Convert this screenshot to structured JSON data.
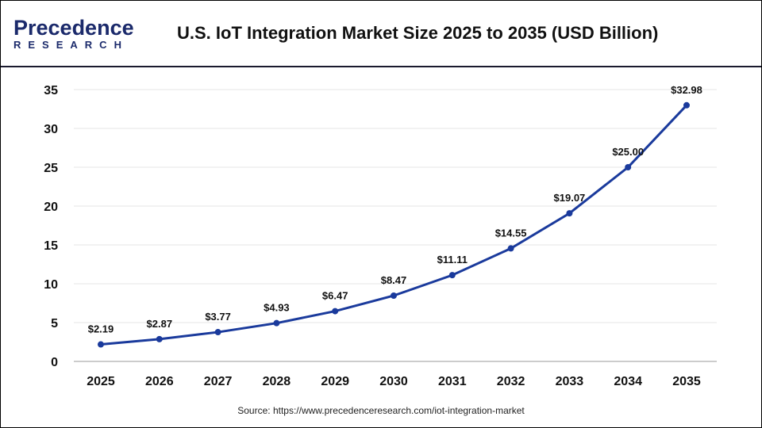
{
  "header": {
    "logo_line1": "Precedence",
    "logo_line2": "RESEARCH",
    "title": "U.S. IoT Integration Market Size 2025 to 2035 (USD Billion)"
  },
  "source": "Source: https://www.precedenceresearch.com/iot-integration-market",
  "chart_data": {
    "type": "line",
    "title": "U.S. IoT Integration Market Size 2025 to 2035 (USD Billion)",
    "categories": [
      "2025",
      "2026",
      "2027",
      "2028",
      "2029",
      "2030",
      "2031",
      "2032",
      "2033",
      "2034",
      "2035"
    ],
    "series": [
      {
        "values": [
          2.19,
          2.87,
          3.77,
          4.93,
          6.47,
          8.47,
          11.11,
          14.55,
          19.07,
          25.0,
          32.98
        ],
        "labels": [
          "$2.19",
          "$2.87",
          "$3.77",
          "$4.93",
          "$6.47",
          "$8.47",
          "$11.11",
          "$14.55",
          "$19.07",
          "$25.00",
          "$32.98"
        ]
      }
    ],
    "yticks": [
      "0",
      "5",
      "10",
      "15",
      "20",
      "25",
      "30",
      "35"
    ],
    "ylim": [
      0,
      35
    ],
    "grid": true,
    "color": "#1a3a9c"
  }
}
